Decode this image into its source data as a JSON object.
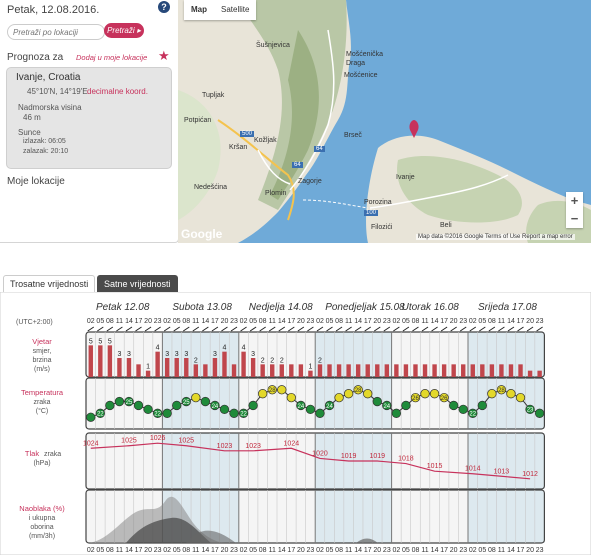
{
  "left": {
    "date": "Petak, 12.08.2016.",
    "search_placeholder": "Pretraži po lokaciji",
    "search_button": "Pretraži ▸",
    "forecast_label": "Prognoza za",
    "add_location": "Dodaj u moje lokacije",
    "location": {
      "name": "Ivanje, Croatia",
      "coords": "45°10'N, 14°19'E",
      "decimal_link": "decimalne koord.",
      "altitude_label": "Nadmorska visina",
      "altitude": "46 m",
      "sun_label": "Sunce",
      "sunrise": "izlazak: 06:05",
      "sunset": "zalazak: 20:10"
    },
    "my_locations": "Moje lokacije"
  },
  "map": {
    "tab_map": "Map",
    "tab_satellite": "Satellite",
    "labels": [
      {
        "text": "Šušnjevica"
      },
      {
        "text": "Mošćenička Draga"
      },
      {
        "text": "Mošćenice"
      },
      {
        "text": "Tupljak"
      },
      {
        "text": "Potpićan"
      },
      {
        "text": "Kožljak"
      },
      {
        "text": "Kršan"
      },
      {
        "text": "Brseč"
      },
      {
        "text": "Nedešćina"
      },
      {
        "text": "Plomin"
      },
      {
        "text": "Zagorje"
      },
      {
        "text": "Porozina"
      },
      {
        "text": "Ivanje"
      },
      {
        "text": "Filozići"
      },
      {
        "text": "Beli"
      }
    ],
    "roads": [
      "500",
      "64",
      "64",
      "100"
    ],
    "attribution": "Map data ©2016 Google    Terms of Use    Report a map error",
    "zoom_in": "+",
    "zoom_out": "−",
    "google": "Google"
  },
  "tabs": {
    "daily": "Trosatne vrijednosti",
    "hourly": "Satne vrijednosti"
  },
  "chart_data": {
    "type": "table",
    "days": [
      "Petak 12.08",
      "Subota 13.08",
      "Nedjelja 14.08",
      "Ponedjeljak 15.08",
      "Utorak 16.08",
      "Srijeda 17.08"
    ],
    "timezone": "(UTC+2:00)",
    "hours": [
      "02",
      "05",
      "08",
      "11",
      "14",
      "17",
      "20",
      "23"
    ],
    "rows": {
      "wind": {
        "label": "Vjetar",
        "sub": [
          "smjer,",
          "brzina",
          "(m/s)"
        ]
      },
      "temperature": {
        "label": "Temperatura",
        "sub": [
          "zraka",
          "(°C)"
        ]
      },
      "pressure": {
        "label": "Tlak",
        "label_extra": "zraka",
        "sub": [
          "(hPa)"
        ]
      },
      "clouds": {
        "label": "Naoblaka (%)",
        "sub": [
          "i ukupna",
          "oborina",
          "(mm/3h)"
        ]
      }
    },
    "wind_speed": [
      5,
      5,
      5,
      3,
      3,
      2,
      1,
      4,
      3,
      3,
      3,
      2,
      2,
      3,
      4,
      2,
      4,
      3,
      2,
      2,
      2,
      2,
      2,
      1,
      2,
      2,
      2,
      2,
      2,
      2,
      2,
      2,
      2,
      2,
      2,
      2,
      2,
      2,
      2,
      2,
      2,
      2,
      2,
      2,
      2,
      2,
      1,
      1
    ],
    "wind_labels": [
      "5",
      "5",
      "5",
      "3",
      "3",
      "",
      "1",
      "4",
      "3",
      "3",
      "3",
      "2",
      "",
      "3",
      "4",
      "",
      "4",
      "3",
      "2",
      "2",
      "2",
      "",
      "",
      "1",
      "2",
      "",
      "",
      "",
      "",
      "",
      "",
      "",
      "",
      "",
      "",
      "",
      "",
      "",
      "",
      "",
      "",
      "",
      "",
      "",
      "",
      "",
      "",
      ""
    ],
    "temperature": [
      21,
      22,
      24,
      25,
      25,
      24,
      23,
      22,
      22,
      24,
      25,
      26,
      25,
      24,
      23,
      22,
      22,
      24,
      27,
      28,
      28,
      26,
      24,
      23,
      22,
      24,
      26,
      27,
      28,
      27,
      25,
      24,
      22,
      24,
      26,
      27,
      27,
      26,
      24,
      23,
      22,
      24,
      27,
      28,
      27,
      26,
      23,
      22
    ],
    "pressure": [
      1024,
      1025,
      1026,
      1025,
      1023,
      1023,
      1024,
      1020,
      1019,
      1019,
      1018,
      1015,
      1014,
      1013,
      1012
    ],
    "pressure_labels": [
      "1024",
      "1025",
      "1026",
      "1025",
      "1023",
      "1023",
      "1024",
      "1020",
      "1019",
      "1019",
      "1018",
      "1015",
      "1014",
      "1013",
      "1012"
    ],
    "colors": {
      "wind": "#c0464c",
      "temp_green": "#1f8b3a",
      "temp_yellow": "#e3d82a",
      "pressure": "#c7325c",
      "cloud": "#888888"
    }
  }
}
